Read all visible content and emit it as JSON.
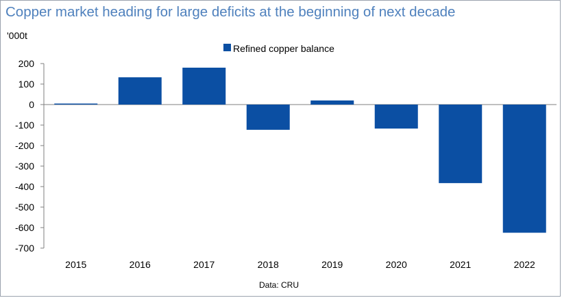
{
  "title": "Copper market heading for large deficits at the beginning of next decade",
  "unit_label": "'000t",
  "source": "Data: CRU",
  "colors": {
    "bar": "#0b4fa3",
    "title": "#4f81bd",
    "axis": "#7f7f7f"
  },
  "chart_data": {
    "type": "bar",
    "categories": [
      "2015",
      "2016",
      "2017",
      "2018",
      "2019",
      "2020",
      "2021",
      "2022"
    ],
    "series": [
      {
        "name": "Refined copper balance",
        "values": [
          5,
          133,
          180,
          -123,
          20,
          -117,
          -383,
          -625
        ]
      }
    ],
    "ylim": [
      -700,
      200
    ],
    "yticks": [
      200,
      100,
      0,
      -100,
      -200,
      -300,
      -400,
      -500,
      -600,
      -700
    ],
    "ylabel": "'000t",
    "xlabel": "",
    "grid": false,
    "legend": "top-center"
  }
}
